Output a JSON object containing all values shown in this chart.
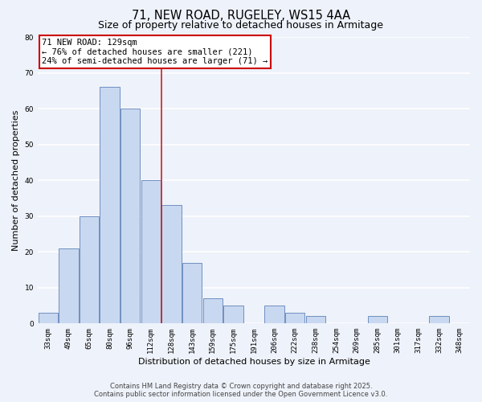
{
  "title": "71, NEW ROAD, RUGELEY, WS15 4AA",
  "subtitle": "Size of property relative to detached houses in Armitage",
  "xlabel": "Distribution of detached houses by size in Armitage",
  "ylabel": "Number of detached properties",
  "bar_labels": [
    "33sqm",
    "49sqm",
    "65sqm",
    "80sqm",
    "96sqm",
    "112sqm",
    "128sqm",
    "143sqm",
    "159sqm",
    "175sqm",
    "191sqm",
    "206sqm",
    "222sqm",
    "238sqm",
    "254sqm",
    "269sqm",
    "285sqm",
    "301sqm",
    "317sqm",
    "332sqm",
    "348sqm"
  ],
  "bar_values": [
    3,
    21,
    30,
    66,
    60,
    40,
    33,
    17,
    7,
    5,
    0,
    5,
    3,
    2,
    0,
    0,
    2,
    0,
    0,
    2,
    0
  ],
  "bar_color": "#c8d8f0",
  "bar_edge_color": "#7090c0",
  "highlight_bar_index": 6,
  "highlight_edge_color": "#cc2020",
  "annotation_title": "71 NEW ROAD: 129sqm",
  "annotation_line1": "← 76% of detached houses are smaller (221)",
  "annotation_line2": "24% of semi-detached houses are larger (71) →",
  "annotation_box_color": "#ffffff",
  "annotation_box_edge_color": "#cc0000",
  "vline_x_index": 6,
  "ylim": [
    0,
    80
  ],
  "yticks": [
    0,
    10,
    20,
    30,
    40,
    50,
    60,
    70,
    80
  ],
  "footer_line1": "Contains HM Land Registry data © Crown copyright and database right 2025.",
  "footer_line2": "Contains public sector information licensed under the Open Government Licence v3.0.",
  "bg_color": "#eef2fa",
  "grid_color": "#ffffff",
  "title_fontsize": 10.5,
  "subtitle_fontsize": 9,
  "axis_label_fontsize": 8,
  "tick_fontsize": 6.5,
  "footer_fontsize": 6.0
}
